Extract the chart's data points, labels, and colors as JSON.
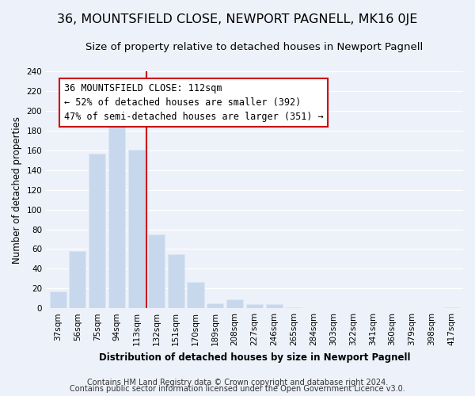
{
  "title": "36, MOUNTSFIELD CLOSE, NEWPORT PAGNELL, MK16 0JE",
  "subtitle": "Size of property relative to detached houses in Newport Pagnell",
  "xlabel": "Distribution of detached houses by size in Newport Pagnell",
  "ylabel": "Number of detached properties",
  "bar_color": "#c8d8ec",
  "bar_edge_color": "#dce8f4",
  "categories": [
    "37sqm",
    "56sqm",
    "75sqm",
    "94sqm",
    "113sqm",
    "132sqm",
    "151sqm",
    "170sqm",
    "189sqm",
    "208sqm",
    "227sqm",
    "246sqm",
    "265sqm",
    "284sqm",
    "303sqm",
    "322sqm",
    "341sqm",
    "360sqm",
    "379sqm",
    "398sqm",
    "417sqm"
  ],
  "values": [
    17,
    58,
    157,
    186,
    161,
    75,
    55,
    27,
    5,
    9,
    4,
    4,
    1,
    0,
    0,
    0,
    0,
    0,
    0,
    0,
    1
  ],
  "vline_x": 4.5,
  "vline_color": "#cc0000",
  "annotation_title": "36 MOUNTSFIELD CLOSE: 112sqm",
  "annotation_line1": "← 52% of detached houses are smaller (392)",
  "annotation_line2": "47% of semi-detached houses are larger (351) →",
  "annotation_box_facecolor": "#ffffff",
  "annotation_box_edgecolor": "#cc0000",
  "ylim": [
    0,
    240
  ],
  "yticks": [
    0,
    20,
    40,
    60,
    80,
    100,
    120,
    140,
    160,
    180,
    200,
    220,
    240
  ],
  "bg_color": "#edf1f9",
  "grid_color": "#ffffff",
  "footer1": "Contains HM Land Registry data © Crown copyright and database right 2024.",
  "footer2": "Contains public sector information licensed under the Open Government Licence v3.0.",
  "title_fontsize": 11.5,
  "subtitle_fontsize": 9.5,
  "axis_label_fontsize": 8.5,
  "tick_fontsize": 7.5,
  "footer_fontsize": 7.0,
  "annotation_fontsize": 8.5
}
